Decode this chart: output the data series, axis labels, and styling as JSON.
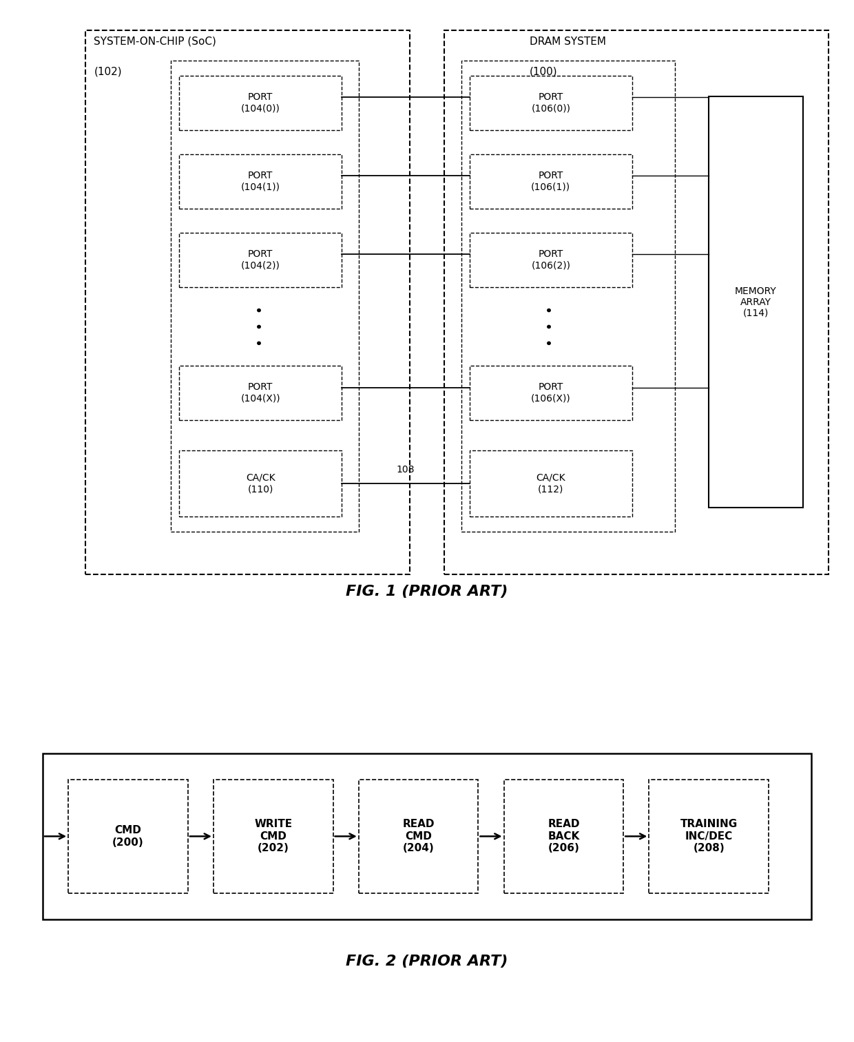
{
  "fig1": {
    "title": "FIG. 1 (PRIOR ART)",
    "soc_label_line1": "SYSTEM-ON-CHIP (SoC)",
    "soc_label_line2": "(102)",
    "dram_label_line1": "DRAM SYSTEM",
    "dram_label_line2": "(100)",
    "memory_array_label": "MEMORY\nARRAY\n(114)",
    "soc_ports": [
      "PORT\n(104(0))",
      "PORT\n(104(1))",
      "PORT\n(104(2))",
      "PORT\n(104(X))"
    ],
    "dram_ports": [
      "PORT\n(106(0))",
      "PORT\n(106(1))",
      "PORT\n(106(2))",
      "PORT\n(106(X))"
    ],
    "ca_ck_soc_line1": "CA/CK",
    "ca_ck_soc_line2": "(110)",
    "ca_ck_dram_line1": "CA/CK",
    "ca_ck_dram_line2": "(112)",
    "bus_label": "108"
  },
  "fig2": {
    "title": "FIG. 2 (PRIOR ART)",
    "boxes": [
      "CMD\n(200)",
      "WRITE\nCMD\n(202)",
      "READ\nCMD\n(204)",
      "READ\nBACK\n(206)",
      "TRAINING\nINC/DEC\n(208)"
    ]
  },
  "bg_color": "#ffffff",
  "text_color": "#000000",
  "line_color": "#000000"
}
